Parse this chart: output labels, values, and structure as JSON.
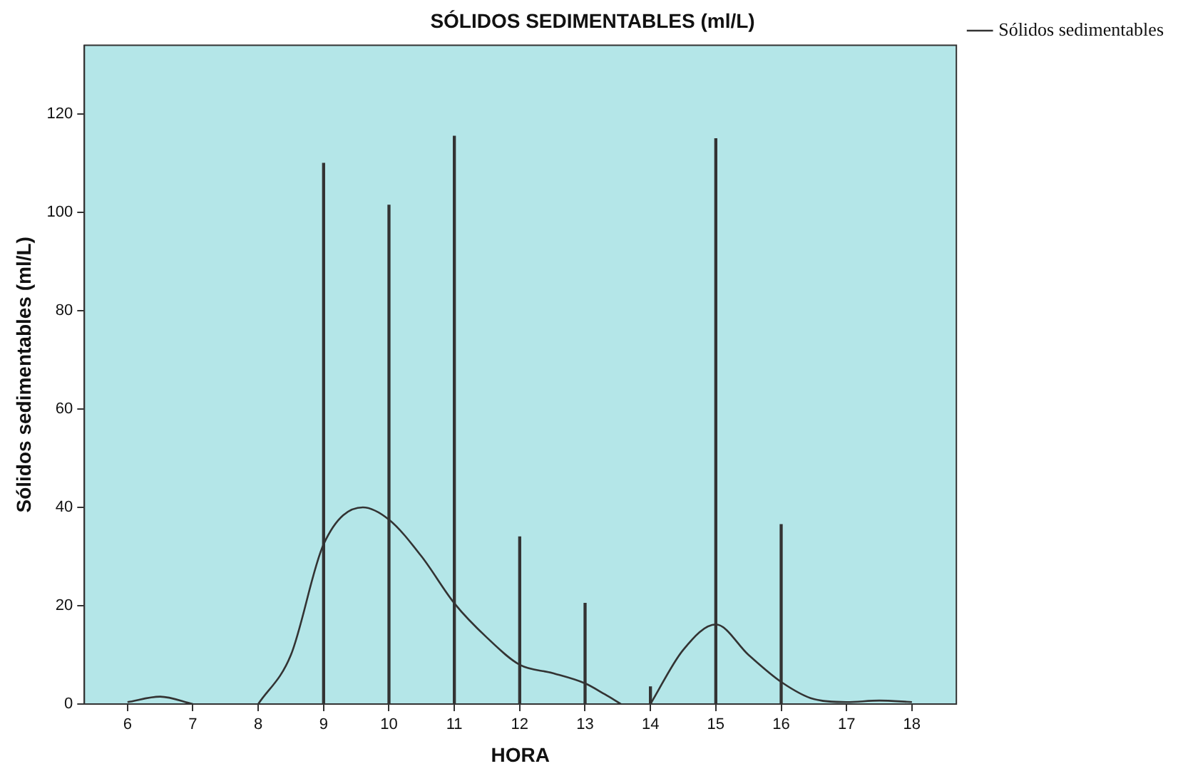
{
  "chart_data": {
    "type": "line",
    "title": "SÓLIDOS SEDIMENTABLES (ml/L)",
    "xlabel": "HORA",
    "ylabel": "Sólidos sedimentables (ml/L)",
    "series": [
      {
        "name": "Sólidos sedimentables",
        "color": "#333333",
        "x": [
          6,
          6.5,
          7,
          7.5,
          8,
          8.5,
          9,
          9.6,
          10,
          10.5,
          11,
          11.5,
          12,
          12.5,
          13,
          13.3,
          13.55,
          13.8,
          14,
          14.5,
          15,
          15.5,
          16,
          16.5,
          17,
          17.5,
          18
        ],
        "values": [
          0.4,
          1.5,
          0,
          null,
          0,
          10,
          32.5,
          40,
          37.5,
          30,
          20.5,
          13.5,
          8,
          6.3,
          4.2,
          2,
          0,
          null,
          0,
          11,
          16.2,
          10,
          4.5,
          1,
          0.4,
          0.7,
          0.4
        ]
      },
      {
        "type": "bar",
        "color": "#333333",
        "x": [
          9,
          10,
          11,
          12,
          13,
          14,
          15,
          16
        ],
        "values": [
          110,
          101.5,
          115.5,
          34,
          20.5,
          3.5,
          115,
          36.5
        ]
      }
    ],
    "xlim": [
      5.34,
      18.68
    ],
    "xticks": [
      6,
      7,
      8,
      9,
      10,
      11,
      12,
      13,
      14,
      15,
      16,
      17,
      18
    ],
    "ylim": [
      0,
      134
    ],
    "yticks": [
      0,
      20,
      40,
      60,
      80,
      100,
      120
    ],
    "grid": false,
    "legend": "top right",
    "line_style": "solid",
    "marker": "none"
  }
}
